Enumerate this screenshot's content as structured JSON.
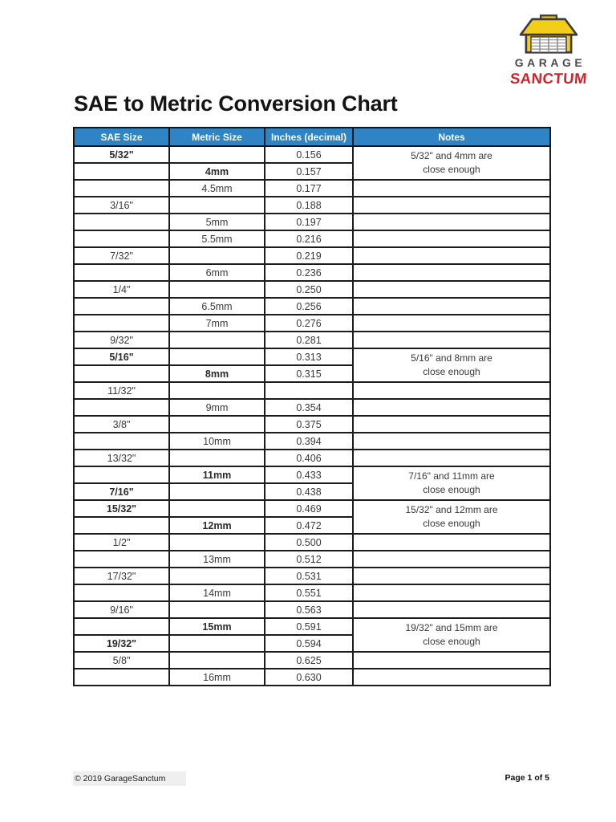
{
  "logo": {
    "garage": "GARAGE",
    "sanctum": "SANCTUM",
    "icon": "garage-icon",
    "colors": {
      "yellow": "#F2CE1B",
      "dark": "#3E3A39",
      "red": "#D2232A",
      "gray_text": "#4C4A48"
    }
  },
  "title": "SAE to Metric Conversion Chart",
  "table": {
    "header_bg": "#2F84C5",
    "headers": [
      "SAE Size",
      "Metric Size",
      "Inches (decimal)",
      "Notes"
    ],
    "rows": [
      {
        "sae": "5/32\"",
        "metric": "",
        "inches": "0.156",
        "bold": true,
        "note": "5/32\" and 4mm are\nclose enough",
        "note_rowspan": 2
      },
      {
        "sae": "",
        "metric": "4mm",
        "inches": "0.157",
        "bold": true,
        "note_skip": true
      },
      {
        "sae": "",
        "metric": "4.5mm",
        "inches": "0.177",
        "bold": false,
        "note": ""
      },
      {
        "sae": "3/16\"",
        "metric": "",
        "inches": "0.188",
        "bold": false,
        "note": ""
      },
      {
        "sae": "",
        "metric": "5mm",
        "inches": "0.197",
        "bold": false,
        "note": ""
      },
      {
        "sae": "",
        "metric": "5.5mm",
        "inches": "0.216",
        "bold": false,
        "note": ""
      },
      {
        "sae": "7/32\"",
        "metric": "",
        "inches": "0.219",
        "bold": false,
        "note": ""
      },
      {
        "sae": "",
        "metric": "6mm",
        "inches": "0.236",
        "bold": false,
        "note": ""
      },
      {
        "sae": "1/4\"",
        "metric": "",
        "inches": "0.250",
        "bold": false,
        "note": ""
      },
      {
        "sae": "",
        "metric": "6.5mm",
        "inches": "0.256",
        "bold": false,
        "note": ""
      },
      {
        "sae": "",
        "metric": "7mm",
        "inches": "0.276",
        "bold": false,
        "note": ""
      },
      {
        "sae": "9/32\"",
        "metric": "",
        "inches": "0.281",
        "bold": false,
        "note": ""
      },
      {
        "sae": "5/16\"",
        "metric": "",
        "inches": "0.313",
        "bold": true,
        "note": "5/16\" and 8mm are\nclose enough",
        "note_rowspan": 2
      },
      {
        "sae": "",
        "metric": "8mm",
        "inches": "0.315",
        "bold": true,
        "note_skip": true
      },
      {
        "sae": "11/32\"",
        "metric": "",
        "inches": "",
        "bold": false,
        "note": ""
      },
      {
        "sae": "",
        "metric": "9mm",
        "inches": "0.354",
        "bold": false,
        "note": ""
      },
      {
        "sae": "3/8\"",
        "metric": "",
        "inches": "0.375",
        "bold": false,
        "note": ""
      },
      {
        "sae": "",
        "metric": "10mm",
        "inches": "0.394",
        "bold": false,
        "note": ""
      },
      {
        "sae": "13/32\"",
        "metric": "",
        "inches": "0.406",
        "bold": false,
        "note": ""
      },
      {
        "sae": "",
        "metric": "11mm",
        "inches": "0.433",
        "bold": true,
        "note": "7/16\" and 11mm are\nclose enough",
        "note_rowspan": 2
      },
      {
        "sae": "7/16\"",
        "metric": "",
        "inches": "0.438",
        "bold": true,
        "note_skip": true
      },
      {
        "sae": "15/32\"",
        "metric": "",
        "inches": "0.469",
        "bold": true,
        "note": "15/32\" and 12mm are\nclose enough",
        "note_rowspan": 2
      },
      {
        "sae": "",
        "metric": "12mm",
        "inches": "0.472",
        "bold": true,
        "note_skip": true
      },
      {
        "sae": "1/2\"",
        "metric": "",
        "inches": "0.500",
        "bold": false,
        "note": ""
      },
      {
        "sae": "",
        "metric": "13mm",
        "inches": "0.512",
        "bold": false,
        "note": ""
      },
      {
        "sae": "17/32\"",
        "metric": "",
        "inches": "0.531",
        "bold": false,
        "note": ""
      },
      {
        "sae": "",
        "metric": "14mm",
        "inches": "0.551",
        "bold": false,
        "note": ""
      },
      {
        "sae": "9/16\"",
        "metric": "",
        "inches": "0.563",
        "bold": false,
        "note": ""
      },
      {
        "sae": "",
        "metric": "15mm",
        "inches": "0.591",
        "bold": true,
        "note": "19/32\" and 15mm are\nclose enough",
        "note_rowspan": 2
      },
      {
        "sae": "19/32\"",
        "metric": "",
        "inches": "0.594",
        "bold": true,
        "note_skip": true
      },
      {
        "sae": "5/8\"",
        "metric": "",
        "inches": "0.625",
        "bold": false,
        "note": ""
      },
      {
        "sae": "",
        "metric": "16mm",
        "inches": "0.630",
        "bold": false,
        "note": ""
      }
    ]
  },
  "footer": {
    "copyright": "© 2019 GarageSanctum",
    "page": "Page 1 of 5"
  }
}
